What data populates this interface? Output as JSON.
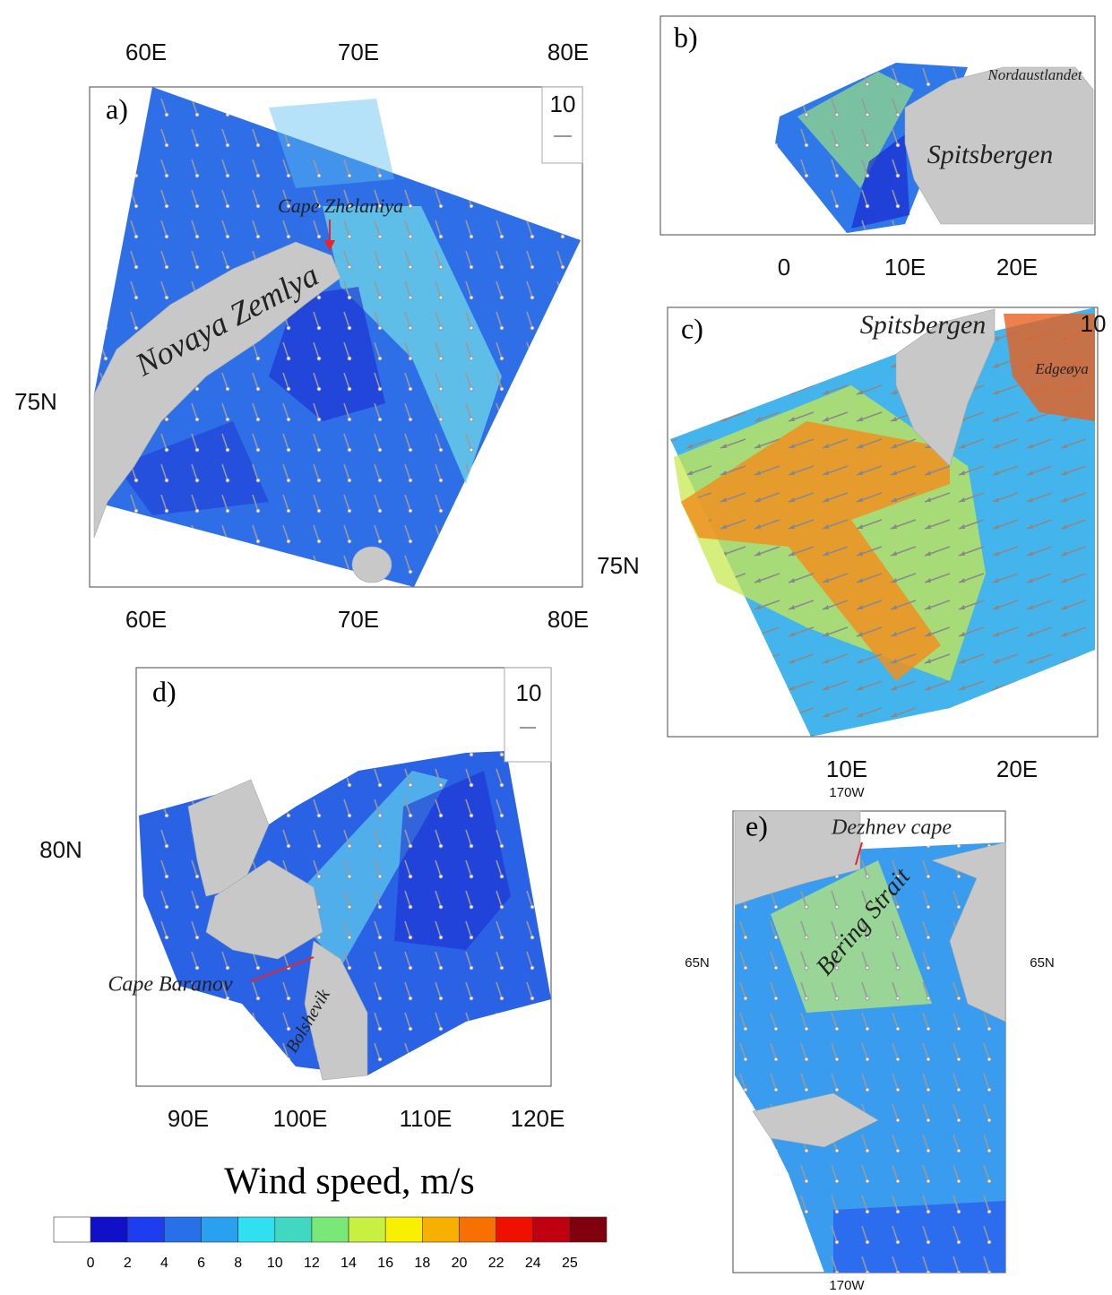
{
  "panels": [
    {
      "label": "a)",
      "x_ticks_top": [
        "60E",
        "70E",
        "80E"
      ],
      "x_ticks_bottom": [
        "60E",
        "70E",
        "80E"
      ],
      "y_ticks_left": [
        "75N"
      ],
      "reference_vector": "10",
      "places": [
        "Novaya Zemlya",
        "Cape Zhelaniya"
      ]
    },
    {
      "label": "b)",
      "x_ticks_bottom": [
        "0",
        "10E",
        "20E"
      ],
      "places": [
        "Nordaustlandet",
        "Spitsbergen"
      ]
    },
    {
      "label": "c)",
      "x_ticks_bottom": [
        "10E",
        "20E"
      ],
      "y_ticks_left": [
        "75N"
      ],
      "reference_vector": "10",
      "places": [
        "Spitsbergen",
        "Edgeøya"
      ]
    },
    {
      "label": "d)",
      "x_ticks_bottom": [
        "90E",
        "100E",
        "110E",
        "120E"
      ],
      "y_ticks_left": [
        "80N"
      ],
      "reference_vector": "10",
      "places": [
        "Cape Baranov",
        "Bolshevik"
      ]
    },
    {
      "label": "e)",
      "x_ticks_top": [
        "170W"
      ],
      "x_ticks_bottom": [
        "170W"
      ],
      "y_ticks_left": [
        "65N"
      ],
      "y_ticks_right": [
        "65N"
      ],
      "places": [
        "Dezhnev cape",
        "Bering Strait"
      ]
    }
  ],
  "colorbar": {
    "title": "Wind speed, m/s",
    "labels": [
      0,
      2,
      4,
      6,
      8,
      10,
      12,
      14,
      16,
      18,
      20,
      22,
      24,
      25
    ],
    "colors": [
      "#ffffff",
      "#1010c8",
      "#1e3cf0",
      "#2870e8",
      "#2aa0f0",
      "#30e0f0",
      "#40d8c0",
      "#78e878",
      "#c8f040",
      "#f8f000",
      "#f8b000",
      "#f87000",
      "#f01000",
      "#c00010",
      "#800010"
    ]
  }
}
